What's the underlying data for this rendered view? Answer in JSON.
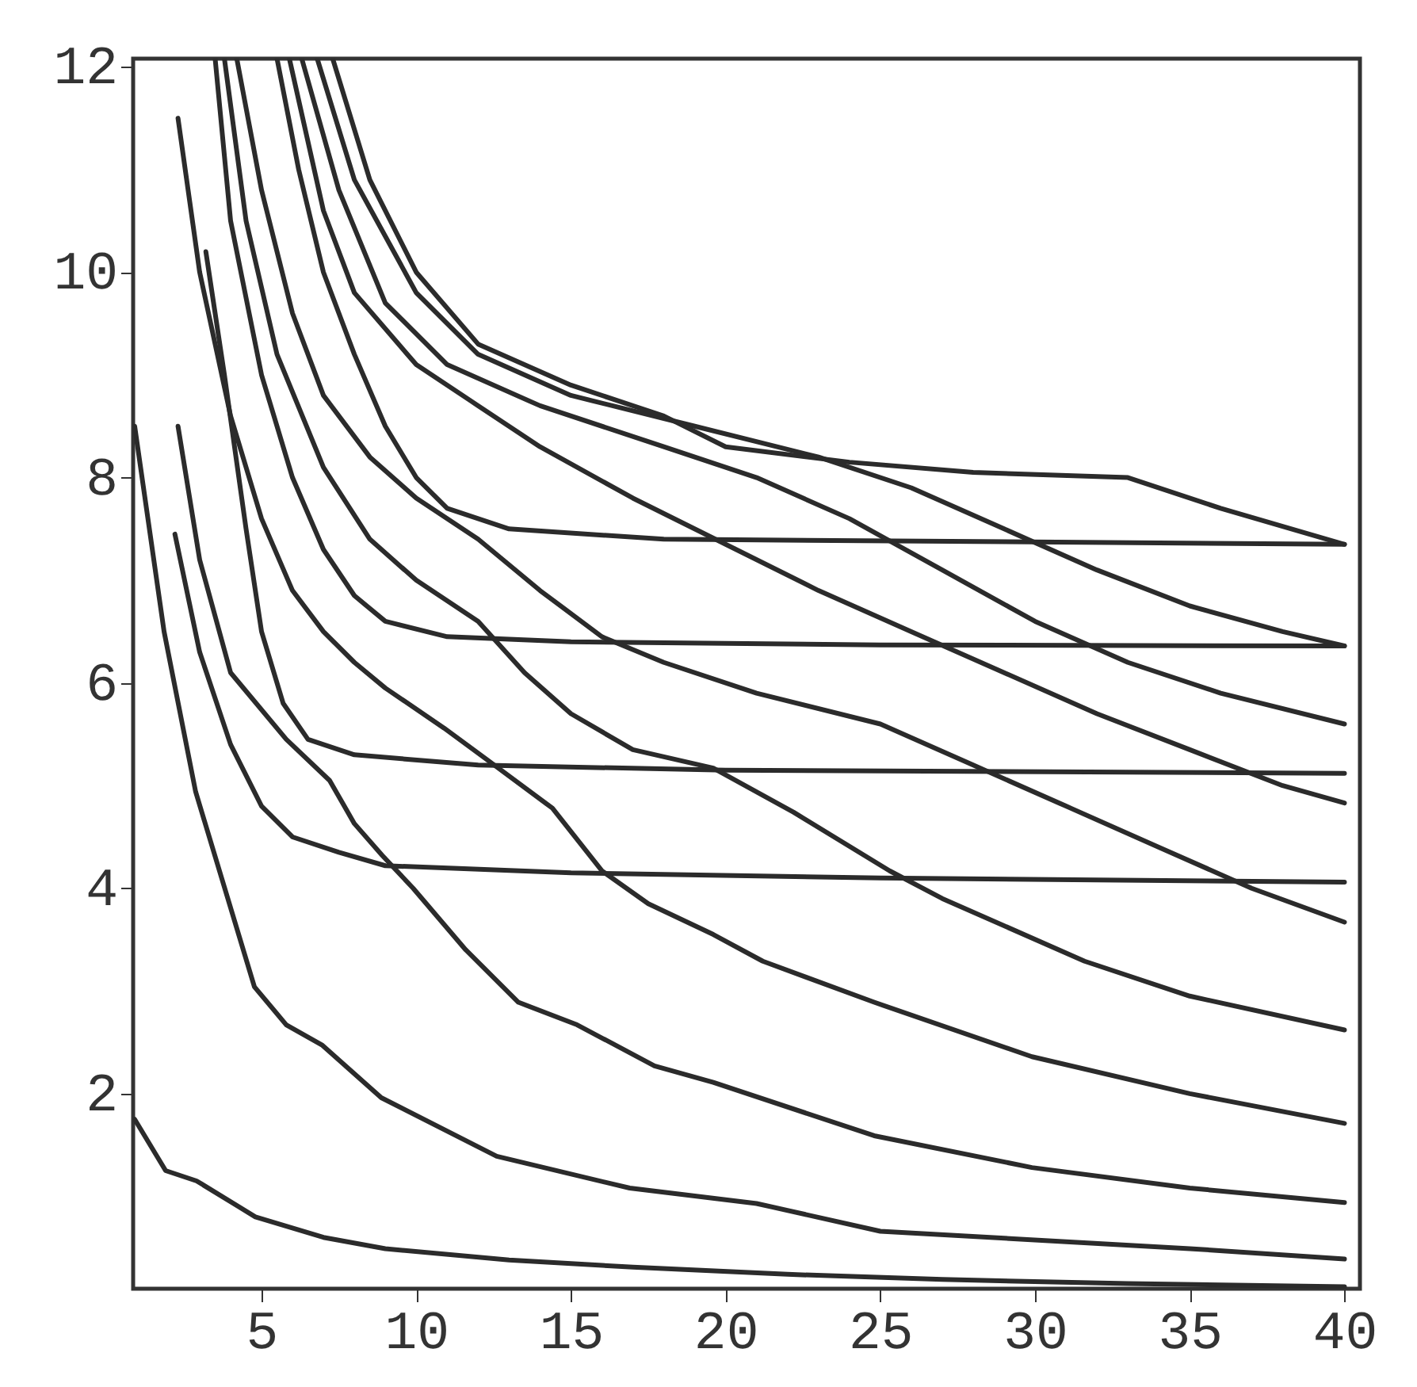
{
  "chart_data": {
    "type": "line",
    "xlim": [
      0.85,
      40.5
    ],
    "ylim": [
      0.1,
      12.08
    ],
    "xticks": [
      5,
      10,
      15,
      20,
      25,
      30,
      35,
      40
    ],
    "yticks": [
      2,
      4,
      6,
      8,
      10,
      12
    ],
    "grid": false,
    "legend": false,
    "line_style": "solid",
    "series": [
      {
        "color": "#2b2b2b",
        "x": [
          0.9,
          1.9,
          2.9,
          4.8,
          7,
          9,
          13,
          17,
          22,
          27,
          33,
          40
        ],
        "values": [
          1.75,
          1.25,
          1.15,
          0.8,
          0.6,
          0.49,
          0.38,
          0.31,
          0.24,
          0.19,
          0.15,
          0.12
        ]
      },
      {
        "color": "#2b2b2b",
        "x": [
          0.9,
          1.85,
          2.87,
          4.77,
          5.8,
          6.97,
          8.87,
          12.6,
          16.9,
          21,
          25,
          35,
          40
        ],
        "values": [
          8.5,
          6.5,
          4.94,
          3.04,
          2.67,
          2.47,
          1.96,
          1.39,
          1.08,
          0.93,
          0.66,
          0.49,
          0.39
        ]
      },
      {
        "color": "#2b2b2b",
        "x": [
          2.3,
          3.0,
          4.0,
          5.8,
          7.2,
          8,
          8.9,
          9.9,
          11.6,
          13.3,
          15.2,
          17.7,
          19.6,
          24.8,
          29.9,
          35,
          40
        ],
        "values": [
          8.5,
          7.2,
          6.1,
          5.45,
          5.05,
          4.63,
          4.32,
          4.0,
          3.4,
          2.89,
          2.67,
          2.27,
          2.11,
          1.59,
          1.28,
          1.08,
          0.94
        ]
      },
      {
        "color": "#2b2b2b",
        "x": [
          2.2,
          3.0,
          4.0,
          5.0,
          6.0,
          7.5,
          9,
          15,
          25,
          40
        ],
        "values": [
          7.45,
          6.3,
          5.4,
          4.8,
          4.5,
          4.35,
          4.22,
          4.15,
          4.1,
          4.06
        ]
      },
      {
        "color": "#2b2b2b",
        "x": [
          2.3,
          3.0,
          4,
          5,
          6,
          7,
          8,
          9,
          10.9,
          12.3,
          14.4,
          16,
          17.5,
          19.6,
          21.2,
          24.8,
          29.9,
          35,
          40
        ],
        "values": [
          11.5,
          10,
          8.6,
          7.6,
          6.9,
          6.5,
          6.2,
          5.95,
          5.56,
          5.25,
          4.78,
          4.17,
          3.85,
          3.55,
          3.29,
          2.89,
          2.36,
          2.0,
          1.71
        ]
      },
      {
        "color": "#2b2b2b",
        "x": [
          3.2,
          3.8,
          4.5,
          5,
          5.7,
          6.5,
          8,
          12,
          20,
          40
        ],
        "values": [
          10.2,
          9,
          7.5,
          6.5,
          5.8,
          5.45,
          5.3,
          5.2,
          5.15,
          5.12
        ]
      },
      {
        "color": "#2b2b2b",
        "x": [
          3.5,
          4,
          5,
          6,
          7,
          8,
          9,
          11,
          15,
          25,
          40
        ],
        "values": [
          12.08,
          10.5,
          9.0,
          8.0,
          7.3,
          6.85,
          6.6,
          6.45,
          6.4,
          6.37,
          6.36
        ]
      },
      {
        "color": "#2b2b2b",
        "x": [
          3.8,
          4.5,
          5.5,
          7,
          8.5,
          10,
          12,
          13.5,
          15,
          17,
          19.6,
          22.2,
          25.3,
          27,
          31.6,
          35,
          40
        ],
        "values": [
          12.08,
          10.5,
          9.2,
          8.1,
          7.4,
          7.0,
          6.6,
          6.1,
          5.7,
          5.35,
          5.17,
          4.74,
          4.17,
          3.9,
          3.29,
          2.95,
          2.62
        ]
      },
      {
        "color": "#2b2b2b",
        "x": [
          4.2,
          5,
          6,
          7,
          8.5,
          10,
          12,
          14,
          16,
          18,
          21,
          25,
          28,
          31,
          34,
          37,
          40
        ],
        "values": [
          12.08,
          10.8,
          9.6,
          8.8,
          8.2,
          7.8,
          7.4,
          6.9,
          6.45,
          6.2,
          5.9,
          5.6,
          5.2,
          4.8,
          4.4,
          4.0,
          3.67
        ]
      },
      {
        "color": "#2b2b2b",
        "x": [
          5.5,
          6.2,
          7,
          8,
          9,
          10,
          11,
          13,
          18,
          40
        ],
        "values": [
          12.08,
          11,
          10,
          9.2,
          8.5,
          8.0,
          7.7,
          7.5,
          7.4,
          7.35
        ]
      },
      {
        "color": "#2b2b2b",
        "x": [
          5.9,
          7,
          8,
          10,
          12,
          14,
          17,
          20,
          23,
          26,
          29,
          32,
          35,
          38,
          40
        ],
        "values": [
          12.08,
          10.6,
          9.8,
          9.1,
          8.7,
          8.3,
          7.8,
          7.35,
          6.9,
          6.5,
          6.1,
          5.7,
          5.35,
          5.0,
          4.83
        ]
      },
      {
        "color": "#2b2b2b",
        "x": [
          6.3,
          7.5,
          9,
          11,
          14,
          18,
          21,
          24,
          27,
          30,
          33,
          36,
          40
        ],
        "values": [
          12.08,
          10.8,
          9.7,
          9.1,
          8.7,
          8.3,
          8.0,
          7.6,
          7.1,
          6.6,
          6.2,
          5.9,
          5.6
        ]
      },
      {
        "color": "#2b2b2b",
        "x": [
          6.8,
          8,
          10,
          12,
          15,
          19,
          23,
          26,
          29,
          32,
          35,
          38,
          40
        ],
        "values": [
          12.08,
          10.9,
          9.8,
          9.2,
          8.8,
          8.5,
          8.2,
          7.9,
          7.5,
          7.1,
          6.75,
          6.5,
          6.36
        ]
      },
      {
        "color": "#2b2b2b",
        "x": [
          7.3,
          8.5,
          10,
          12,
          15,
          18,
          20,
          24,
          28,
          33,
          36,
          40
        ],
        "values": [
          12.08,
          10.9,
          10.0,
          9.3,
          8.9,
          8.6,
          8.3,
          8.15,
          8.05,
          8.0,
          7.7,
          7.35
        ]
      }
    ]
  }
}
